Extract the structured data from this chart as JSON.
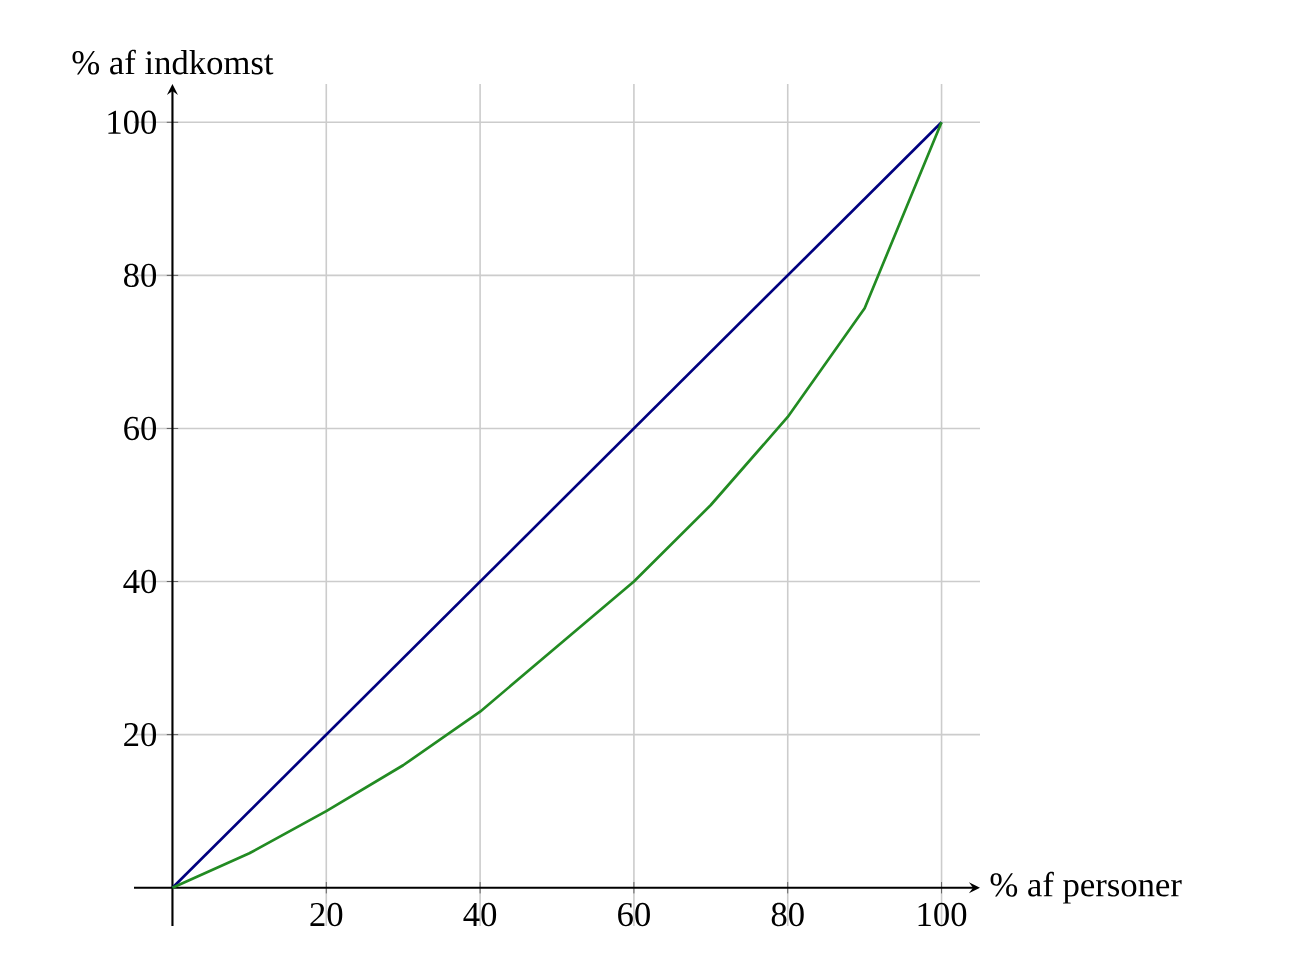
{
  "chart_data": {
    "type": "line",
    "xlabel": "% af personer",
    "ylabel": "% af indkomst",
    "x": [
      0,
      10,
      20,
      30,
      40,
      50,
      60,
      70,
      80,
      90,
      100
    ],
    "series": [
      {
        "color": "#00007f",
        "x": [
          0,
          100
        ],
        "values": [
          0,
          100
        ]
      },
      {
        "color": "#228b22",
        "values": [
          0,
          4.5,
          10,
          16,
          23,
          31.5,
          40,
          50,
          61.5,
          75.7,
          100
        ]
      }
    ],
    "xlim": [
      -5,
      105
    ],
    "ylim": [
      -5,
      105
    ],
    "xticks": [
      20,
      40,
      60,
      80,
      100
    ],
    "yticks": [
      20,
      40,
      60,
      80,
      100
    ],
    "grid": true,
    "marker": "none",
    "line_style": "solid"
  }
}
